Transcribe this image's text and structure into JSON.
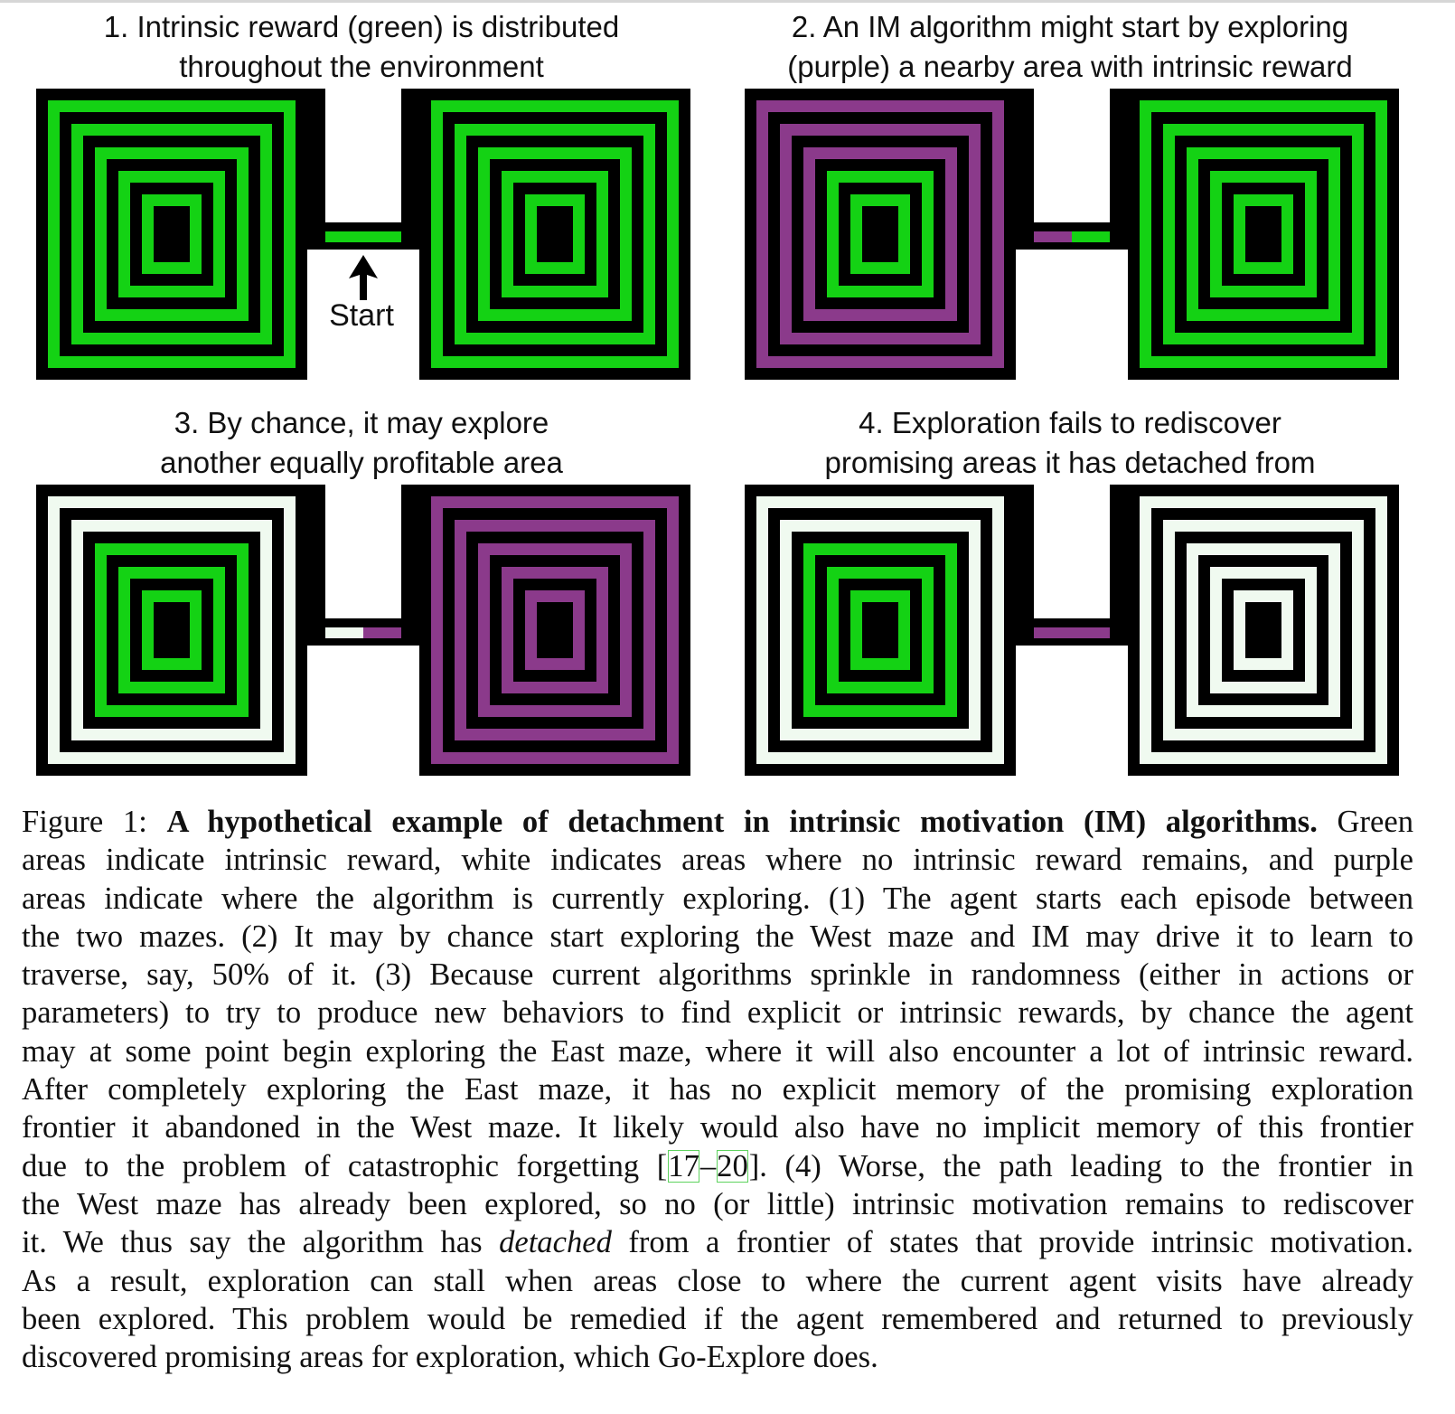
{
  "colors": {
    "reward": "#14d214",
    "explored": "#f0faf0",
    "exploring": "#8b3a8b",
    "wall": "#000000",
    "citation_box": "#5fd35f"
  },
  "panels": [
    {
      "title_lines": [
        "1. Intrinsic reward (green) is distributed",
        "throughout the environment"
      ],
      "start_label": "Start",
      "west_maze_state": "reward",
      "east_maze_state": "reward",
      "corridor_state": "reward"
    },
    {
      "title_lines": [
        "2. An IM algorithm might start by exploring",
        "(purple) a nearby area with intrinsic reward"
      ],
      "west_maze_state": "exploring-partial",
      "east_maze_state": "reward",
      "corridor_state": "exploring-west-half"
    },
    {
      "title_lines": [
        "3. By chance, it may explore",
        "another equally profitable area"
      ],
      "west_maze_state": "explored-outer-reward-inner",
      "east_maze_state": "exploring",
      "corridor_state": "exploring-east-half"
    },
    {
      "title_lines": [
        "4. Exploration fails to rediscover",
        "promising areas it has detached from"
      ],
      "west_maze_state": "explored-outer-reward-inner",
      "east_maze_state": "explored",
      "corridor_state": "exploring"
    }
  ],
  "caption": {
    "figure_label": "Figure 1: ",
    "bold_title": "A hypothetical example of detachment in intrinsic motivation (IM) algorithms.",
    "l1_rest": " Green",
    "l2": "areas indicate intrinsic reward, white indicates areas where no intrinsic reward remains, and purple",
    "l3": "areas indicate where the algorithm is currently exploring. (1) The agent starts each episode between",
    "l4": "the two mazes. (2) It may by chance start exploring the West maze and IM may drive it to learn to",
    "l5": "traverse, say, 50% of it. (3) Because current algorithms sprinkle in randomness (either in actions or",
    "l6": "parameters) to try to produce new behaviors to find explicit or intrinsic rewards, by chance the agent",
    "l7": "may at some point begin exploring the East maze, where it will also encounter a lot of intrinsic reward.",
    "l8": "After completely exploring the East maze, it has no explicit memory of the promising exploration",
    "l9": "frontier it abandoned in the West maze. It likely would also have no implicit memory of this frontier",
    "l10_a": "due to the problem of catastrophic forgetting [",
    "cite_start": "17",
    "cite_dash": "–",
    "cite_end": "20",
    "l10_b": "]. (4) Worse, the path leading to the frontier in",
    "l11": "the West maze has already been explored, so no (or little) intrinsic motivation remains to rediscover",
    "l12_a": "it. We thus say the algorithm has ",
    "l12_em": "detached",
    "l12_b": " from a frontier of states that provide intrinsic motivation.",
    "l13": "As a result, exploration can stall when areas close to where the current agent visits have already",
    "l14": "been explored. This problem would be remedied if the agent remembered and returned to previously",
    "l15": "discovered promising areas for exploration, which Go-Explore does."
  }
}
